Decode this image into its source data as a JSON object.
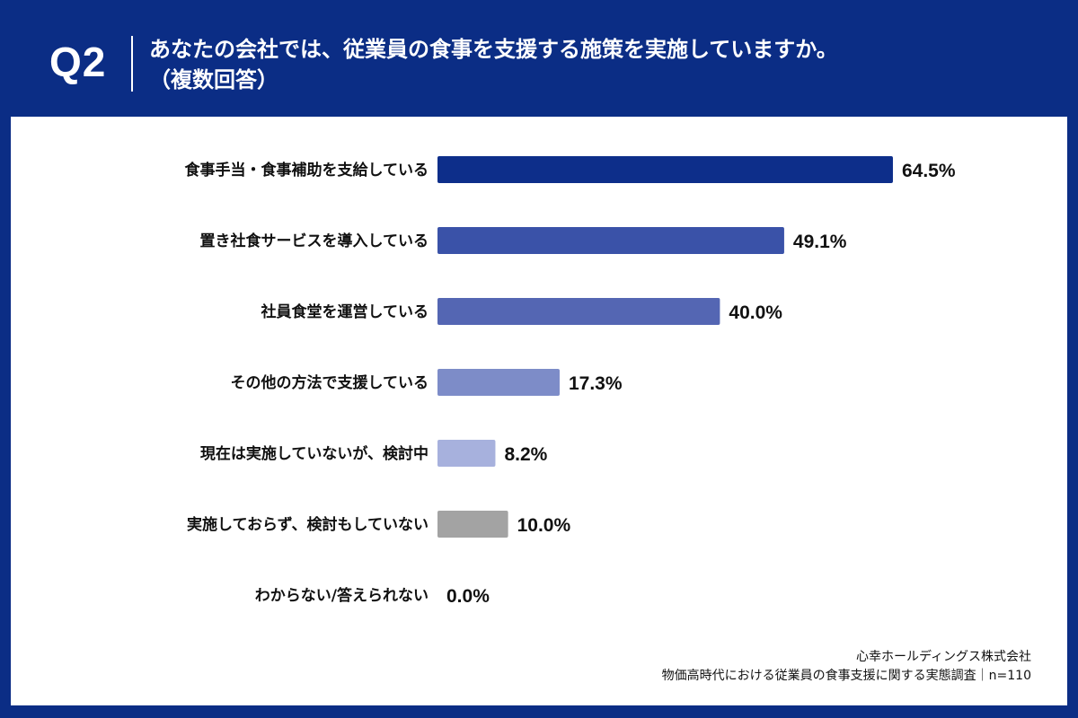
{
  "header": {
    "q_label": "Q2",
    "title_line1": "あなたの会社では、従業員の食事を支援する施策を実施していますか。",
    "title_line2": "（複数回答）"
  },
  "chart_data": {
    "type": "bar",
    "orientation": "horizontal",
    "categories": [
      "食事手当・食事補助を支給している",
      "置き社食サービスを導入している",
      "社員食堂を運営している",
      "その他の方法で支援している",
      "現在は実施していないが、検討中",
      "実施しておらず、検討もしていない",
      "わからない/答えられない"
    ],
    "values": [
      64.5,
      49.1,
      40.0,
      17.3,
      8.2,
      10.0,
      0.0
    ],
    "value_labels": [
      "64.5%",
      "49.1%",
      "40.0%",
      "17.3%",
      "8.2%",
      "10.0%",
      "0.0%"
    ],
    "colors": [
      "#0d2e8a",
      "#3a52a8",
      "#5466b3",
      "#7d8cc8",
      "#a7b1dd",
      "#a3a3a3",
      "#a3a3a3"
    ],
    "xlim": [
      0,
      100
    ],
    "grid": false,
    "legend": "none"
  },
  "footer": {
    "company": "心幸ホールディングス株式会社",
    "survey": "物価高時代における従業員の食事支援に関する実態調査｜n=110"
  }
}
